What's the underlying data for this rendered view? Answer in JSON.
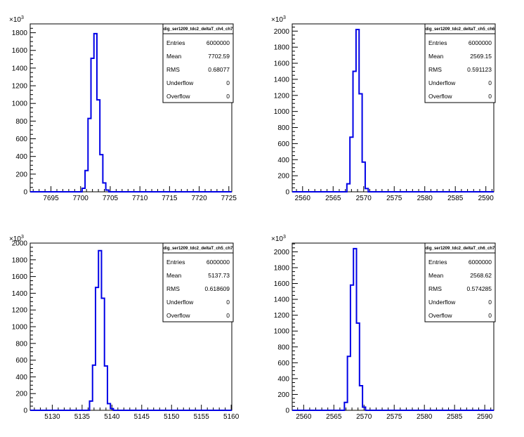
{
  "chart_data": [
    {
      "type": "histogram",
      "title": "dig_ser1209_tdc2_deltaT_ch4_ch7",
      "x_ticks": [
        7695,
        7700,
        7705,
        7710,
        7715,
        7720,
        7725
      ],
      "xlim": [
        7691.5,
        7725.5
      ],
      "y_ticks": [
        0,
        200,
        400,
        600,
        800,
        1000,
        1200,
        1400,
        1600,
        1800
      ],
      "ylim": [
        0,
        1900
      ],
      "y_exponent": "3",
      "bins": [
        {
          "x": 7700.5,
          "y": 40
        },
        {
          "x": 7701.0,
          "y": 240
        },
        {
          "x": 7701.5,
          "y": 830
        },
        {
          "x": 7702.0,
          "y": 1510
        },
        {
          "x": 7702.5,
          "y": 1790
        },
        {
          "x": 7703.0,
          "y": 1040
        },
        {
          "x": 7703.5,
          "y": 420
        },
        {
          "x": 7704.0,
          "y": 100
        },
        {
          "x": 7704.5,
          "y": 20
        }
      ],
      "stats": {
        "title": "dig_ser1209_tdc2_deltaT_ch4_ch7",
        "rows": [
          {
            "label": "Entries",
            "value": "6000000"
          },
          {
            "label": "Mean",
            "value": "7702.59"
          },
          {
            "label": "RMS",
            "value": "0.68077"
          },
          {
            "label": "Underflow",
            "value": "0"
          },
          {
            "label": "Overflow",
            "value": "0"
          }
        ]
      }
    },
    {
      "type": "histogram",
      "title": "dig_ser1209_tdc2_deltaT_ch5_ch6",
      "x_ticks": [
        2560,
        2565,
        2570,
        2575,
        2580,
        2585,
        2590
      ],
      "xlim": [
        2558.3,
        2591.3
      ],
      "y_ticks": [
        0,
        200,
        400,
        600,
        800,
        1000,
        1200,
        1400,
        1600,
        1800,
        2000
      ],
      "ylim": [
        0,
        2090
      ],
      "y_exponent": "3",
      "bins": [
        {
          "x": 2567.5,
          "y": 100
        },
        {
          "x": 2568.0,
          "y": 680
        },
        {
          "x": 2568.5,
          "y": 1500
        },
        {
          "x": 2569.0,
          "y": 2020
        },
        {
          "x": 2569.5,
          "y": 1220
        },
        {
          "x": 2570.0,
          "y": 370
        },
        {
          "x": 2570.5,
          "y": 40
        }
      ],
      "stats": {
        "title": "dig_ser1209_tdc2_deltaT_ch5_ch6",
        "rows": [
          {
            "label": "Entries",
            "value": "6000000"
          },
          {
            "label": "Mean",
            "value": "2569.15"
          },
          {
            "label": "RMS",
            "value": "0.591123"
          },
          {
            "label": "Underflow",
            "value": "0"
          },
          {
            "label": "Overflow",
            "value": "0"
          }
        ]
      }
    },
    {
      "type": "histogram",
      "title": "dig_ser1209_tdc2_deltaT_ch5_ch7",
      "x_ticks": [
        5130,
        5135,
        5140,
        5145,
        5150,
        5155,
        5160
      ],
      "xlim": [
        5126.3,
        5160.1
      ],
      "y_ticks": [
        0,
        200,
        400,
        600,
        800,
        1000,
        1200,
        1400,
        1600,
        1800,
        2000
      ],
      "ylim": [
        0,
        2000
      ],
      "y_exponent": "3",
      "bins": [
        {
          "x": 5136.5,
          "y": 110
        },
        {
          "x": 5137.0,
          "y": 540
        },
        {
          "x": 5137.5,
          "y": 1470
        },
        {
          "x": 5138.0,
          "y": 1910
        },
        {
          "x": 5138.5,
          "y": 1340
        },
        {
          "x": 5139.0,
          "y": 530
        },
        {
          "x": 5139.5,
          "y": 80
        },
        {
          "x": 5140.0,
          "y": 20
        }
      ],
      "stats": {
        "title": "dig_ser1209_tdc2_deltaT_ch5_ch7",
        "rows": [
          {
            "label": "Entries",
            "value": "6000000"
          },
          {
            "label": "Mean",
            "value": "5137.73"
          },
          {
            "label": "RMS",
            "value": "0.618609"
          },
          {
            "label": "Underflow",
            "value": "0"
          },
          {
            "label": "Overflow",
            "value": "0"
          }
        ]
      }
    },
    {
      "type": "histogram",
      "title": "dig_ser1209_tdc2_deltaT_ch6_ch7",
      "x_ticks": [
        2560,
        2565,
        2570,
        2575,
        2580,
        2585,
        2590
      ],
      "xlim": [
        2558.1,
        2591.5
      ],
      "y_ticks": [
        0,
        200,
        400,
        600,
        800,
        1000,
        1200,
        1400,
        1600,
        1800,
        2000
      ],
      "ylim": [
        0,
        2110
      ],
      "y_exponent": "3",
      "bins": [
        {
          "x": 2567.0,
          "y": 100
        },
        {
          "x": 2567.5,
          "y": 680
        },
        {
          "x": 2568.0,
          "y": 1580
        },
        {
          "x": 2568.5,
          "y": 2040
        },
        {
          "x": 2569.0,
          "y": 1100
        },
        {
          "x": 2569.5,
          "y": 310
        },
        {
          "x": 2570.0,
          "y": 40
        }
      ],
      "stats": {
        "title": "dig_ser1209_tdc2_deltaT_ch6_ch7",
        "rows": [
          {
            "label": "Entries",
            "value": "6000000"
          },
          {
            "label": "Mean",
            "value": "2568.62"
          },
          {
            "label": "RMS",
            "value": "0.574285"
          },
          {
            "label": "Underflow",
            "value": "0"
          },
          {
            "label": "Overflow",
            "value": "0"
          }
        ]
      }
    }
  ],
  "colors": {
    "histogram": "#0000e6",
    "frame": "#000000",
    "background": "#ffffff"
  }
}
